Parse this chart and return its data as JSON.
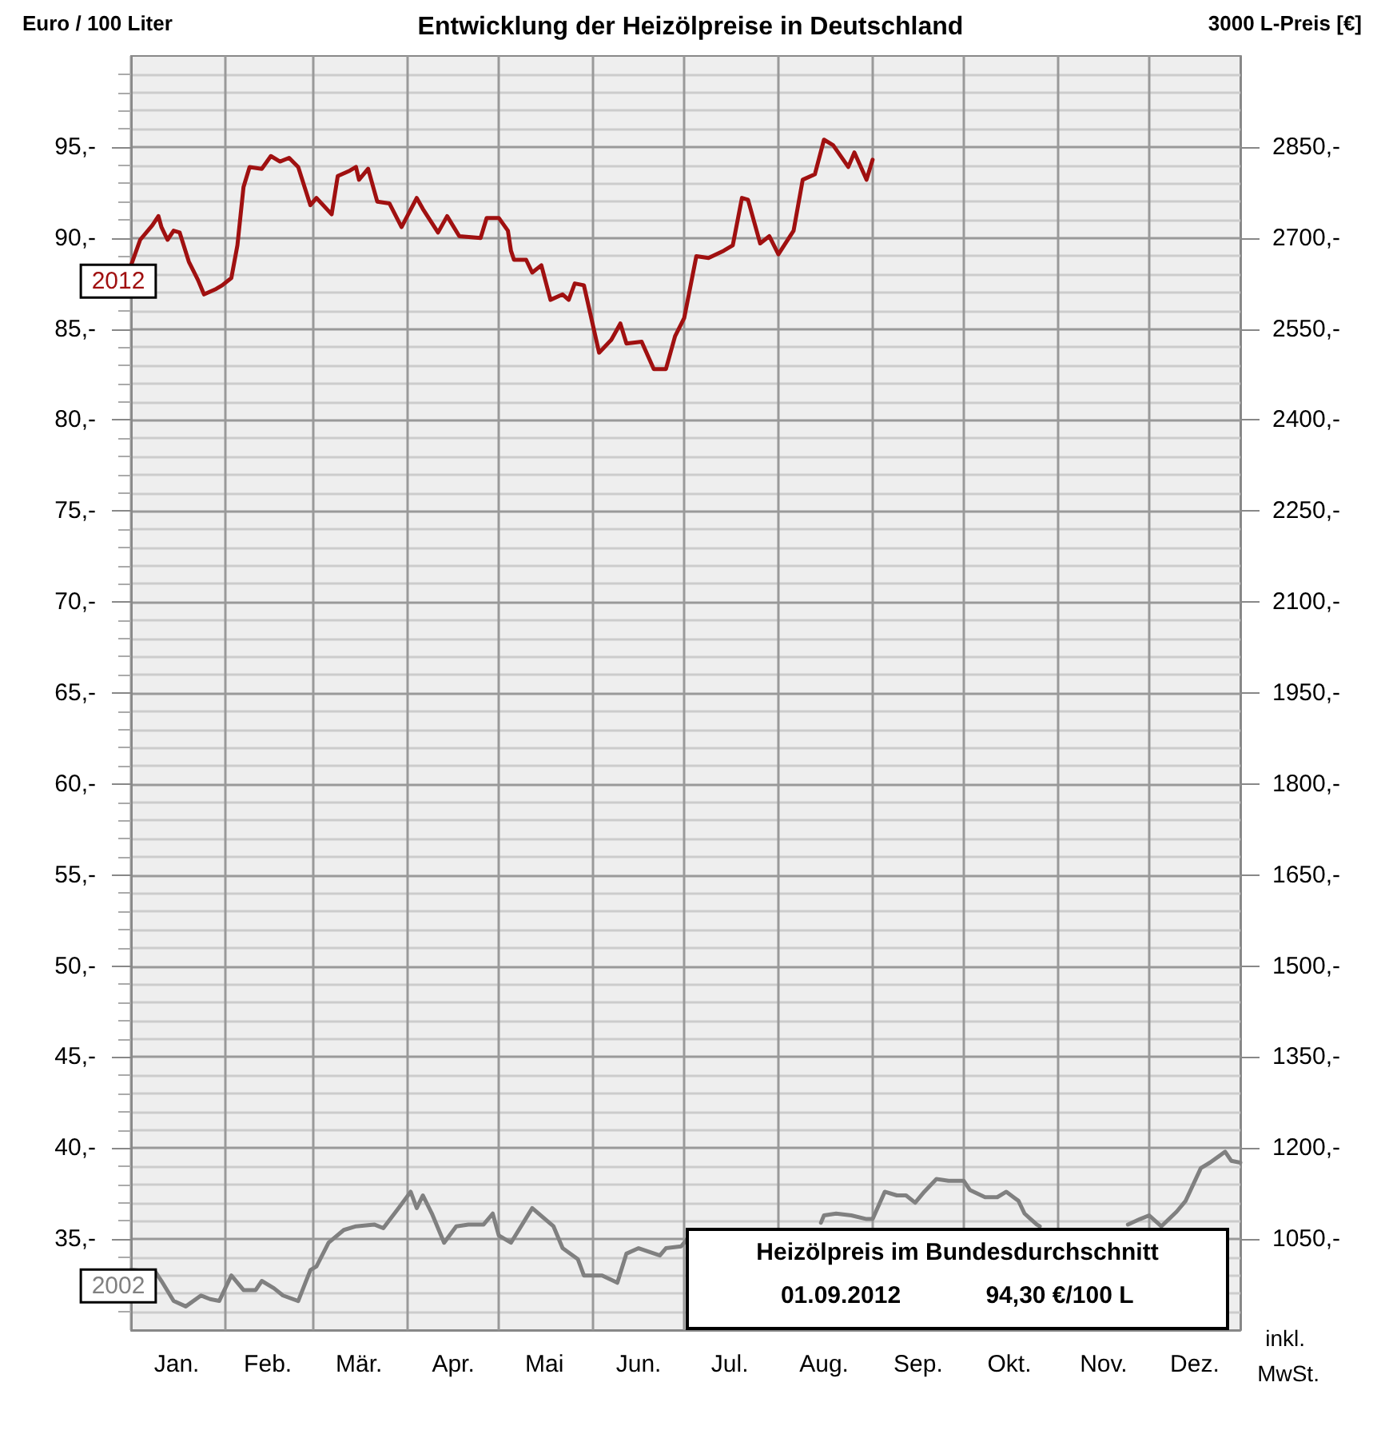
{
  "chart_data": {
    "type": "line",
    "title": "Entwicklung der Heizölpreise in Deutschland",
    "ylabel": "Euro / 100 Liter",
    "y2label": "3000 L-Preis [€]",
    "annotations": [
      "Heizölpreis im Bundesdurchschnitt",
      "01.09.2012",
      "94,30 €/100 L",
      "inkl. MwSt."
    ],
    "xlim": [
      "--01-01",
      "--12-31"
    ],
    "xticks": [
      {
        "value": "--01-01",
        "label": null
      },
      {
        "value": "--01-16",
        "label": "Jan."
      },
      {
        "value": "--02-01",
        "label": null
      },
      {
        "value": "--02-15",
        "label": "Feb."
      },
      {
        "value": "--03-01",
        "label": null
      },
      {
        "value": "--03-16",
        "label": "Mär."
      },
      {
        "value": "--04-01",
        "label": null
      },
      {
        "value": "--04-16",
        "label": "Apr."
      },
      {
        "value": "--05-01",
        "label": null
      },
      {
        "value": "--05-16",
        "label": "Mai"
      },
      {
        "value": "--06-01",
        "label": null
      },
      {
        "value": "--06-16",
        "label": "Jun."
      },
      {
        "value": "--07-01",
        "label": null
      },
      {
        "value": "--07-16",
        "label": "Jul."
      },
      {
        "value": "--08-01",
        "label": null
      },
      {
        "value": "--08-16",
        "label": "Aug."
      },
      {
        "value": "--09-01",
        "label": null
      },
      {
        "value": "--09-16",
        "label": "Sep."
      },
      {
        "value": "--10-01",
        "label": null
      },
      {
        "value": "--10-16",
        "label": "Okt."
      },
      {
        "value": "--11-01",
        "label": null
      },
      {
        "value": "--11-16",
        "label": "Nov."
      },
      {
        "value": "--12-01",
        "label": null
      },
      {
        "value": "--12-16",
        "label": "Dez."
      }
    ],
    "ylim": [
      30,
      100
    ],
    "yticks": [
      {
        "value": 35,
        "label": "35,-"
      },
      {
        "value": 40,
        "label": "40,-"
      },
      {
        "value": 45,
        "label": "45,-"
      },
      {
        "value": 50,
        "label": "50,-"
      },
      {
        "value": 55,
        "label": "55,-"
      },
      {
        "value": 60,
        "label": "60,-"
      },
      {
        "value": 65,
        "label": "65,-"
      },
      {
        "value": 70,
        "label": "70,-"
      },
      {
        "value": 75,
        "label": "75,-"
      },
      {
        "value": 80,
        "label": "80,-"
      },
      {
        "value": 85,
        "label": "85,-"
      },
      {
        "value": 90,
        "label": "90,-"
      },
      {
        "value": 95,
        "label": "95,-"
      }
    ],
    "y2lim": [
      900,
      3000
    ],
    "y2ticks": [
      {
        "value": 1050,
        "label": "1050,-"
      },
      {
        "value": 1200,
        "label": "1200,-"
      },
      {
        "value": 1350,
        "label": "1350,-"
      },
      {
        "value": 1500,
        "label": "1500,-"
      },
      {
        "value": 1650,
        "label": "1650,-"
      },
      {
        "value": 1800,
        "label": "1800,-"
      },
      {
        "value": 1950,
        "label": "1950,-"
      },
      {
        "value": 2100,
        "label": "2100,-"
      },
      {
        "value": 2250,
        "label": "2250,-"
      },
      {
        "value": 2400,
        "label": "2400,-"
      },
      {
        "value": 2550,
        "label": "2550,-"
      },
      {
        "value": 2700,
        "label": "2700,-"
      },
      {
        "value": 2850,
        "label": "2850,-"
      }
    ],
    "grid": true,
    "marker": "none",
    "line_style": "solid",
    "series": [
      {
        "name": "2012",
        "color": "#a01010",
        "x": [
          "--01-01",
          "--01-04",
          "--01-08",
          "--01-10",
          "--01-11",
          "--01-13",
          "--01-15",
          "--01-17",
          "--01-20",
          "--01-23",
          "--01-25",
          "--01-29",
          "--01-31",
          "--02-03",
          "--02-05",
          "--02-07",
          "--02-09",
          "--02-13",
          "--02-16",
          "--02-19",
          "--02-22",
          "--02-25",
          "--02-29",
          "--03-02",
          "--03-07",
          "--03-09",
          "--03-13",
          "--03-15",
          "--03-16",
          "--03-19",
          "--03-22",
          "--03-26",
          "--03-30",
          "--04-04",
          "--04-06",
          "--04-11",
          "--04-14",
          "--04-18",
          "--04-25",
          "--04-27",
          "--05-01",
          "--05-04",
          "--05-05",
          "--05-06",
          "--05-10",
          "--05-12",
          "--05-15",
          "--05-18",
          "--05-22",
          "--05-24",
          "--05-26",
          "--05-29",
          "--06-03",
          "--06-07",
          "--06-10",
          "--06-12",
          "--06-17",
          "--06-21",
          "--06-25",
          "--06-28",
          "--07-01",
          "--07-05",
          "--07-09",
          "--07-14",
          "--07-17",
          "--07-20",
          "--07-22",
          "--07-26",
          "--07-29",
          "--08-01",
          "--08-06",
          "--08-09",
          "--08-13",
          "--08-16",
          "--08-19",
          "--08-24",
          "--08-26",
          "--08-30",
          "--09-01"
        ],
        "values": [
          88.5,
          89.9,
          90.7,
          91.2,
          90.6,
          89.9,
          90.4,
          90.3,
          88.7,
          87.7,
          86.9,
          87.2,
          87.4,
          87.8,
          89.6,
          92.8,
          93.9,
          93.8,
          94.5,
          94.2,
          94.4,
          93.9,
          91.8,
          92.2,
          91.3,
          93.4,
          93.7,
          93.9,
          93.2,
          93.8,
          92.0,
          91.9,
          90.6,
          92.2,
          91.6,
          90.3,
          91.2,
          90.1,
          90.0,
          91.1,
          91.1,
          90.4,
          89.3,
          88.8,
          88.8,
          88.1,
          88.5,
          86.6,
          86.9,
          86.6,
          87.5,
          87.4,
          83.7,
          84.4,
          85.3,
          84.2,
          84.3,
          82.8,
          82.8,
          84.6,
          85.6,
          89.0,
          88.9,
          89.3,
          89.6,
          92.2,
          92.1,
          89.7,
          90.1,
          89.1,
          90.4,
          93.2,
          93.5,
          95.4,
          95.1,
          93.9,
          94.7,
          93.2,
          94.3
        ]
      },
      {
        "name": "2002",
        "color": "#808080",
        "x": [
          "--01-01",
          "--01-09",
          "--01-11",
          "--01-15",
          "--01-19",
          "--01-24",
          "--01-27",
          "--01-30",
          "--02-03",
          "--02-07",
          "--02-11",
          "--02-13",
          "--02-17",
          "--02-20",
          "--02-25",
          "--02-29",
          "--03-02",
          "--03-06",
          "--03-11",
          "--03-15",
          "--03-21",
          "--03-24",
          "--03-29",
          "--04-02",
          "--04-04",
          "--04-06",
          "--04-09",
          "--04-13",
          "--04-17",
          "--04-21",
          "--04-26",
          "--04-29",
          "--05-01",
          "--05-05",
          "--05-12",
          "--05-19",
          "--05-22",
          "--05-27",
          "--05-29",
          "--06-04",
          "--06-09",
          "--06-12",
          "--06-16",
          "--06-23",
          "--06-25",
          "--06-30",
          "--07-02",
          "--07-15",
          "--08-15",
          "--08-16",
          "--08-20",
          "--08-25",
          "--08-30",
          "--09-01",
          "--09-05",
          "--09-09",
          "--09-12",
          "--09-15",
          "--09-18",
          "--09-22",
          "--09-26",
          "--10-01",
          "--10-03",
          "--10-08",
          "--10-12",
          "--10-15",
          "--10-19",
          "--10-21",
          "--10-25",
          "--10-26",
          "--11-10",
          "--11-24",
          "--11-28",
          "--12-01",
          "--12-05",
          "--12-10",
          "--12-13",
          "--12-18",
          "--12-21",
          "--12-26",
          "--12-28",
          "--12-31"
        ],
        "values": [
          33.3,
          33.2,
          32.7,
          31.6,
          31.3,
          31.9,
          31.7,
          31.6,
          33.0,
          32.2,
          32.2,
          32.7,
          32.3,
          31.9,
          31.6,
          33.3,
          33.5,
          34.8,
          35.5,
          35.7,
          35.8,
          35.6,
          36.7,
          37.6,
          36.7,
          37.4,
          36.4,
          34.8,
          35.7,
          35.8,
          35.8,
          36.4,
          35.2,
          34.8,
          36.7,
          35.7,
          34.5,
          33.9,
          33.0,
          33.0,
          32.6,
          34.2,
          34.5,
          34.1,
          34.5,
          34.6,
          35.0,
          null,
          35.9,
          36.3,
          36.4,
          36.3,
          36.1,
          36.1,
          37.6,
          37.4,
          37.4,
          37.0,
          37.6,
          38.3,
          38.2,
          38.2,
          37.7,
          37.3,
          37.3,
          37.6,
          37.1,
          36.4,
          35.8,
          35.7,
          null,
          35.8,
          36.1,
          36.3,
          35.7,
          36.5,
          37.1,
          38.9,
          39.2,
          39.8,
          39.3,
          39.2
        ]
      }
    ]
  }
}
